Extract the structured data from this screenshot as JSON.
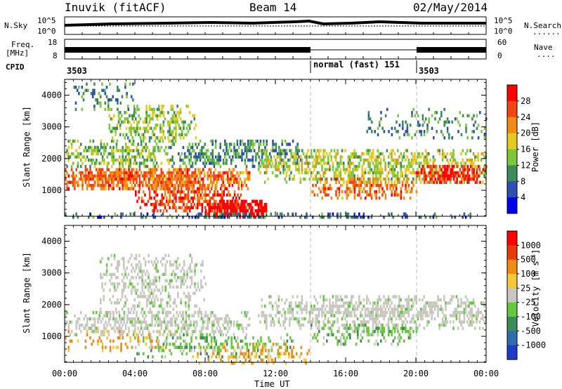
{
  "header": {
    "station": "Inuvik (fitACF)",
    "beam": "Beam 14",
    "date": "02/May/2014"
  },
  "param_panels": {
    "nsky_label": "N.Sky",
    "nsearch_label": "N.Search",
    "nsearch_line": "·······",
    "freq_label": "Freq.",
    "freq_unit": "[MHz]",
    "nave_label": "Nave",
    "nave_line": "····",
    "cpid_label": "CPID",
    "noise_ticks": [
      "10^5",
      "10^0"
    ],
    "noise_right_ticks": [
      "10^5",
      "10^0"
    ],
    "freq_ticks": [
      "18",
      "8"
    ],
    "nave_ticks": [
      "60",
      "0"
    ],
    "cpid_segments": [
      "3503",
      "normal (fast) 151",
      "3503"
    ],
    "cpid_changes_hours": [
      14.0,
      20.0
    ]
  },
  "chart_data": [
    {
      "type": "heatmap",
      "panel": "power",
      "ylabel": "Slant Range [km]",
      "xlabel": "Time UT",
      "xlim_hours": [
        0,
        24
      ],
      "ylim_km": [
        180,
        4500
      ],
      "x_ticks": [
        "00:00",
        "04:00",
        "08:00",
        "12:00",
        "16:00",
        "20:00",
        "00:00"
      ],
      "y_ticks": [
        1000,
        2000,
        3000,
        4000
      ],
      "colorbar": {
        "label": "Power [dB]",
        "ticks": [
          4,
          8,
          12,
          16,
          20,
          24,
          28
        ],
        "colors": [
          "#0000ee",
          "#2d50b4",
          "#3c8c5a",
          "#7cc83c",
          "#e6c81e",
          "#f08c14",
          "#f04614",
          "#ff0000"
        ]
      },
      "blobs": [
        {
          "t0": 0.0,
          "t1": 10.5,
          "r0": 1100,
          "r1": 1700,
          "value": 22,
          "density": 0.9
        },
        {
          "t0": 0.0,
          "t1": 6.0,
          "r0": 1800,
          "r1": 2600,
          "value": 12,
          "density": 0.6
        },
        {
          "t0": 2.5,
          "t1": 7.5,
          "r0": 2600,
          "r1": 3700,
          "value": 12,
          "density": 0.5
        },
        {
          "t0": 0.5,
          "t1": 4.0,
          "r0": 3600,
          "r1": 4400,
          "value": 8,
          "density": 0.3
        },
        {
          "t0": 4.0,
          "t1": 10.0,
          "r0": 400,
          "r1": 1100,
          "value": 24,
          "density": 0.6
        },
        {
          "t0": 8.0,
          "t1": 11.5,
          "r0": 200,
          "r1": 700,
          "value": 30,
          "density": 0.95
        },
        {
          "t0": 6.0,
          "t1": 13.5,
          "r0": 1800,
          "r1": 2600,
          "value": 8,
          "density": 0.55
        },
        {
          "t0": 11.0,
          "t1": 24.0,
          "r0": 1300,
          "r1": 2300,
          "value": 14,
          "density": 0.6
        },
        {
          "t0": 14.0,
          "t1": 20.0,
          "r0": 800,
          "r1": 1400,
          "value": 22,
          "density": 0.55
        },
        {
          "t0": 20.0,
          "t1": 24.0,
          "r0": 1300,
          "r1": 1800,
          "value": 26,
          "density": 0.8
        },
        {
          "t0": 17.0,
          "t1": 24.0,
          "r0": 2700,
          "r1": 3600,
          "value": 8,
          "density": 0.25
        },
        {
          "t0": 0.0,
          "t1": 24.0,
          "r0": 180,
          "r1": 300,
          "value": 6,
          "density": 0.4
        }
      ]
    },
    {
      "type": "heatmap",
      "panel": "velocity",
      "ylabel": "Slant Range [km]",
      "xlabel": "Time UT",
      "xlim_hours": [
        0,
        24
      ],
      "ylim_km": [
        180,
        4500
      ],
      "x_ticks": [
        "00:00",
        "04:00",
        "08:00",
        "12:00",
        "16:00",
        "20:00",
        "00:00"
      ],
      "y_ticks": [
        1000,
        2000,
        3000,
        4000
      ],
      "colorbar": {
        "label": "Velocity [m s^-1]",
        "ticks": [
          "1000",
          "500",
          "100",
          "25",
          "-25",
          "-100",
          "-500",
          "-1000"
        ],
        "colors": [
          "#1e3cc8",
          "#2d6eaa",
          "#3c8c5a",
          "#64c83c",
          "#c8c8c0",
          "#f5c83c",
          "#f08c14",
          "#e63c0a",
          "#ff0000"
        ]
      },
      "blobs": [
        {
          "t0": 0.0,
          "t1": 10.5,
          "r0": 1100,
          "r1": 1800,
          "value": "ground",
          "density": 0.55
        },
        {
          "t0": 2.0,
          "t1": 8.0,
          "r0": 1800,
          "r1": 3600,
          "value": "ground",
          "density": 0.4
        },
        {
          "t0": 11.0,
          "t1": 24.0,
          "r0": 1300,
          "r1": 2300,
          "value": "ground",
          "density": 0.6
        },
        {
          "t0": 4.0,
          "t1": 13.0,
          "r0": 400,
          "r1": 1100,
          "value": "green",
          "density": 0.35
        },
        {
          "t0": 7.0,
          "t1": 14.0,
          "r0": 200,
          "r1": 800,
          "value": "orange",
          "density": 0.25
        },
        {
          "t0": 14.0,
          "t1": 20.0,
          "r0": 800,
          "r1": 1400,
          "value": "green",
          "density": 0.4
        },
        {
          "t0": 0.0,
          "t1": 6.0,
          "r0": 600,
          "r1": 1200,
          "value": "orange",
          "density": 0.2
        }
      ]
    }
  ]
}
